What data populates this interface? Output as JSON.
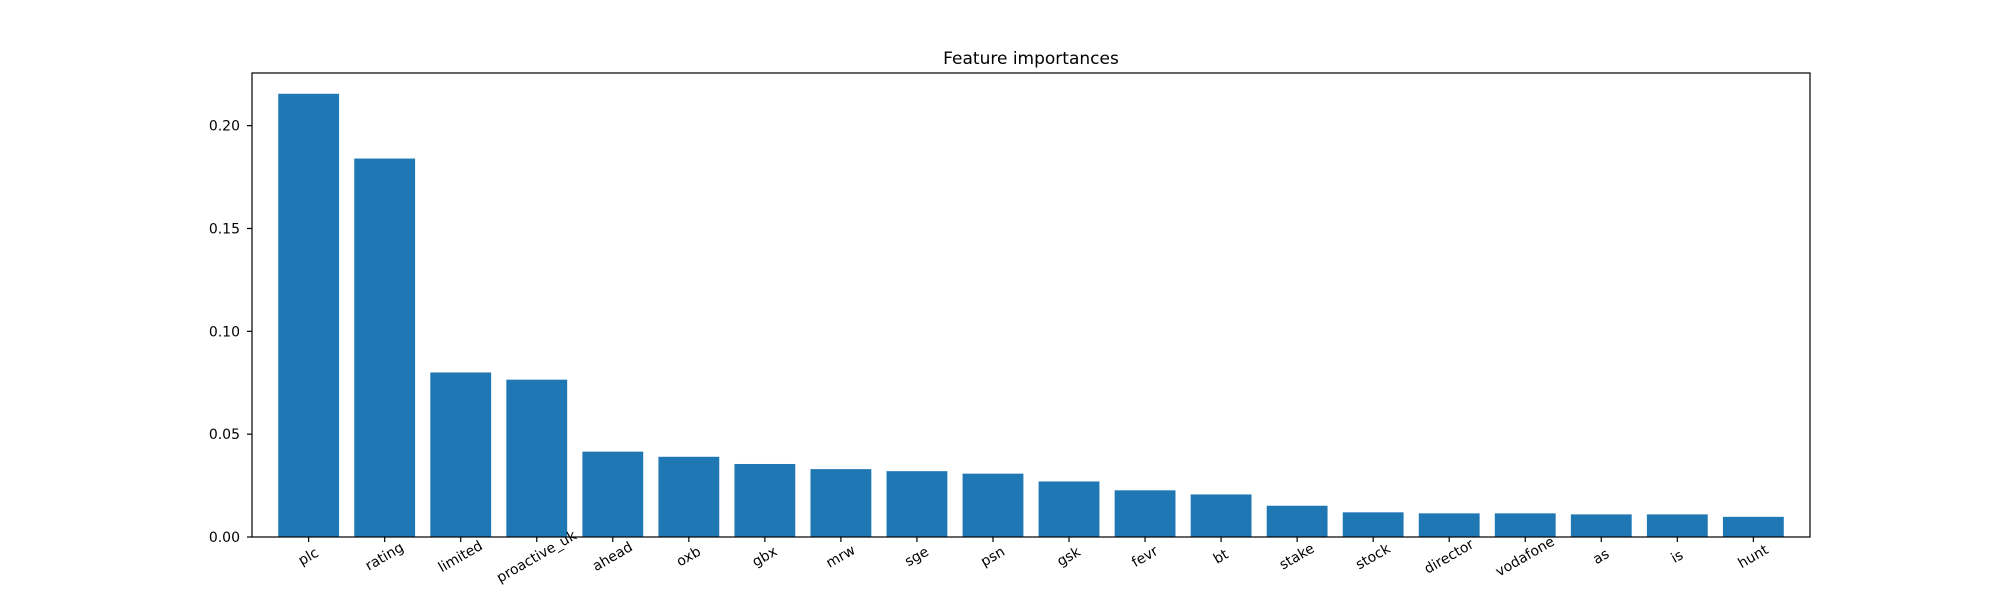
{
  "chart_data": {
    "type": "bar",
    "title": "Feature importances",
    "xlabel": "",
    "ylabel": "",
    "categories": [
      "plc",
      "rating",
      "limited",
      "proactive_uk",
      "ahead",
      "oxb",
      "gbx",
      "mrw",
      "sge",
      "psn",
      "gsk",
      "fevr",
      "bt",
      "stake",
      "stock",
      "director",
      "vodafone",
      "as",
      "is",
      "hunt"
    ],
    "values": [
      0.2155,
      0.184,
      0.08,
      0.0765,
      0.0415,
      0.039,
      0.0355,
      0.033,
      0.032,
      0.0308,
      0.027,
      0.0227,
      0.0207,
      0.0152,
      0.012,
      0.0115,
      0.0115,
      0.011,
      0.011,
      0.0098
    ],
    "ylim": [
      0,
      0.2256
    ],
    "yticks": [
      0.0,
      0.05,
      0.1,
      0.15,
      0.2
    ],
    "ytick_labels": [
      "0.00",
      "0.05",
      "0.10",
      "0.15",
      "0.20"
    ],
    "bar_color": "#1f77b4",
    "grid": false,
    "legend": "none"
  }
}
